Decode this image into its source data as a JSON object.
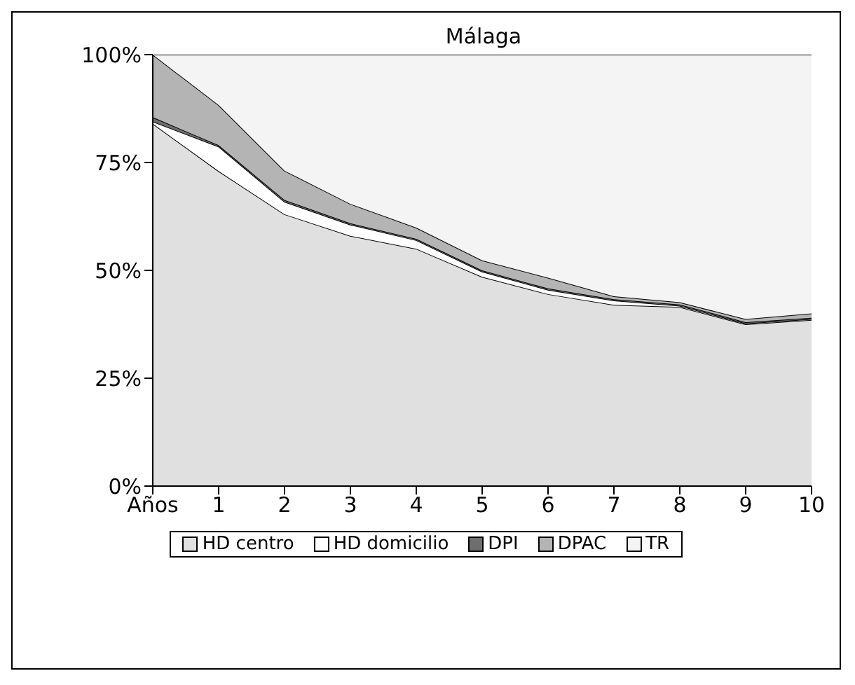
{
  "chart_data": {
    "type": "area",
    "title": "Málaga",
    "stacked": true,
    "categories": [
      "Años",
      "1",
      "2",
      "3",
      "4",
      "5",
      "6",
      "7",
      "8",
      "9",
      "10"
    ],
    "series": [
      {
        "name": "HD centro",
        "color": "#e0e0e0",
        "values": [
          84,
          73,
          63,
          58,
          55,
          48.5,
          44.5,
          42,
          41.5,
          37.5,
          38.5
        ]
      },
      {
        "name": "HD domicilio",
        "color": "#ffffff",
        "values": [
          0.5,
          5.7,
          2.9,
          2.6,
          2,
          1.2,
          1,
          1,
          0.3,
          0.2,
          0.2
        ]
      },
      {
        "name": "DPI",
        "color": "#6e6e6e",
        "values": [
          1,
          0.3,
          0.4,
          0.3,
          0.3,
          0.3,
          0.3,
          0.3,
          0.3,
          0.3,
          0.3
        ]
      },
      {
        "name": "DPAC",
        "color": "#b4b4b4",
        "values": [
          14.5,
          9.3,
          6.8,
          4.5,
          2.6,
          2.3,
          2.5,
          0.7,
          0.5,
          0.7,
          1
        ]
      },
      {
        "name": "TR",
        "color": "#f4f4f4",
        "values": [
          0,
          11.7,
          26.9,
          34.6,
          40.1,
          47.7,
          51.7,
          56,
          57.4,
          61.3,
          60
        ]
      }
    ],
    "ylim": [
      0,
      100
    ],
    "yticks": [
      {
        "value": 0,
        "label": "0%"
      },
      {
        "value": 25,
        "label": "25%"
      },
      {
        "value": 50,
        "label": "50%"
      },
      {
        "value": 75,
        "label": "75%"
      },
      {
        "value": 100,
        "label": "100%"
      }
    ],
    "grid": false,
    "legend": "bottom"
  }
}
